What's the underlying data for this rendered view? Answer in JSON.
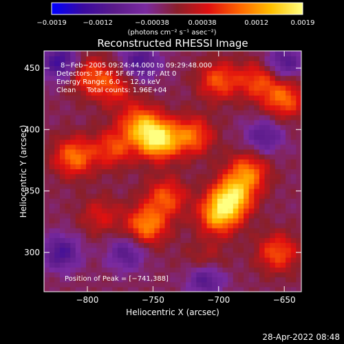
{
  "chart_data": {
    "type": "heatmap",
    "title": "Reconstructed RHESSI Image",
    "xlabel": "Heliocentric X (arcsec)",
    "ylabel": "Heliocentric Y (arcsec)",
    "xlim": [
      -833,
      -637
    ],
    "ylim": [
      268,
      464
    ],
    "x_ticks": [
      -800,
      -750,
      -700,
      -650
    ],
    "y_ticks": [
      300,
      350,
      400,
      450
    ],
    "x_tick_labels": [
      "−800",
      "−750",
      "−700",
      "−650"
    ],
    "y_tick_labels": [
      "300",
      "350",
      "400",
      "450"
    ],
    "colorbar": {
      "range": [
        -0.0019,
        0.0019
      ],
      "tick_labels": [
        "−0.0019",
        "−0.0012",
        "−0.00038",
        "0.00038",
        "0.0012",
        "0.0019"
      ],
      "tick_values": [
        -0.0019,
        -0.0012,
        -0.00038,
        0.00038,
        0.0012,
        0.0019
      ],
      "units_label": "(photons cm⁻² s⁻¹ asec⁻²)",
      "colors": [
        "#0000ff",
        "#3a0aa0",
        "#5b1b8a",
        "#7a2aa0",
        "#8a1f2a",
        "#e01010",
        "#ff6600",
        "#ffc000",
        "#ffff80"
      ]
    },
    "annotations": [
      "8−Feb−2005 09:24:44.000 to 09:29:48.000",
      "Detectors: 3F 4F 5F 6F 7F 8F, Att 0",
      "Energy Range: 6.0 − 12.0 keV",
      "Clean     Total counts: 1.96E+04"
    ],
    "peak_label": "Position of Peak = [−741,388]",
    "peak": [
      -741,
      388
    ],
    "emission_sources": [
      {
        "x": -746,
        "y": 392,
        "value": 0.0019
      },
      {
        "x": -760,
        "y": 405,
        "value": 0.0012
      },
      {
        "x": -720,
        "y": 395,
        "value": 0.0011
      },
      {
        "x": -690,
        "y": 345,
        "value": 0.0017
      },
      {
        "x": -700,
        "y": 330,
        "value": 0.0014
      },
      {
        "x": -678,
        "y": 365,
        "value": 0.0012
      },
      {
        "x": -755,
        "y": 322,
        "value": 0.0013
      },
      {
        "x": -740,
        "y": 345,
        "value": 0.001
      },
      {
        "x": -810,
        "y": 378,
        "value": 0.0012
      },
      {
        "x": -780,
        "y": 385,
        "value": 0.0009
      },
      {
        "x": -800,
        "y": 445,
        "value": 0.0009
      },
      {
        "x": -780,
        "y": 435,
        "value": 0.0008
      },
      {
        "x": -700,
        "y": 440,
        "value": 0.001
      },
      {
        "x": -650,
        "y": 425,
        "value": 0.0011
      },
      {
        "x": -670,
        "y": 440,
        "value": 0.0009
      },
      {
        "x": -655,
        "y": 300,
        "value": 0.001
      },
      {
        "x": -710,
        "y": 290,
        "value": 0.0007
      },
      {
        "x": -790,
        "y": 330,
        "value": 0.0006
      }
    ],
    "negative_regions": [
      {
        "x": -820,
        "y": 455,
        "value": -0.0012
      },
      {
        "x": -760,
        "y": 455,
        "value": -0.001
      },
      {
        "x": -650,
        "y": 455,
        "value": -0.0009
      },
      {
        "x": -820,
        "y": 300,
        "value": -0.001
      },
      {
        "x": -710,
        "y": 280,
        "value": -0.0012
      },
      {
        "x": -665,
        "y": 395,
        "value": -0.0008
      },
      {
        "x": -770,
        "y": 300,
        "value": -0.0008
      }
    ]
  },
  "footer": {
    "timestamp": "28-Apr-2022 08:48"
  }
}
